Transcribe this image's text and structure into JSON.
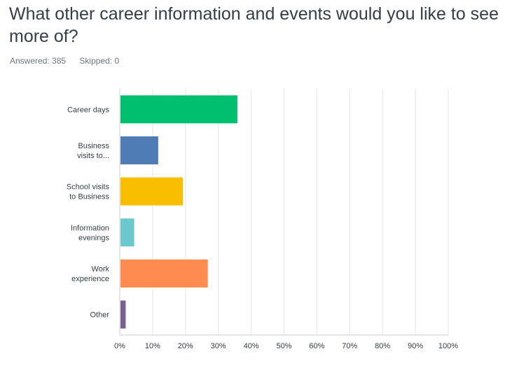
{
  "question": {
    "title": "What other career information and events would you like to see more of?",
    "answered": "Answered: 385",
    "skipped": "Skipped: 0"
  },
  "chart_data": {
    "type": "bar",
    "orientation": "horizontal",
    "categories": [
      [
        "Career days"
      ],
      [
        "Business",
        "visits to..."
      ],
      [
        "School visits",
        "to Business"
      ],
      [
        "Information",
        "evenings"
      ],
      [
        "Work",
        "experience"
      ],
      [
        "Other"
      ]
    ],
    "values": [
      35.8,
      11.7,
      19.2,
      4.4,
      26.8,
      1.8
    ],
    "colors": [
      "#00bf6f",
      "#507cb6",
      "#f9be00",
      "#6bc8cd",
      "#ff8b4f",
      "#7d5e90"
    ],
    "xlim": [
      0,
      100
    ],
    "ticks": [
      "0%",
      "10%",
      "20%",
      "30%",
      "40%",
      "50%",
      "60%",
      "70%",
      "80%",
      "90%",
      "100%"
    ],
    "grid": true,
    "title": "",
    "xlabel": "",
    "ylabel": ""
  }
}
